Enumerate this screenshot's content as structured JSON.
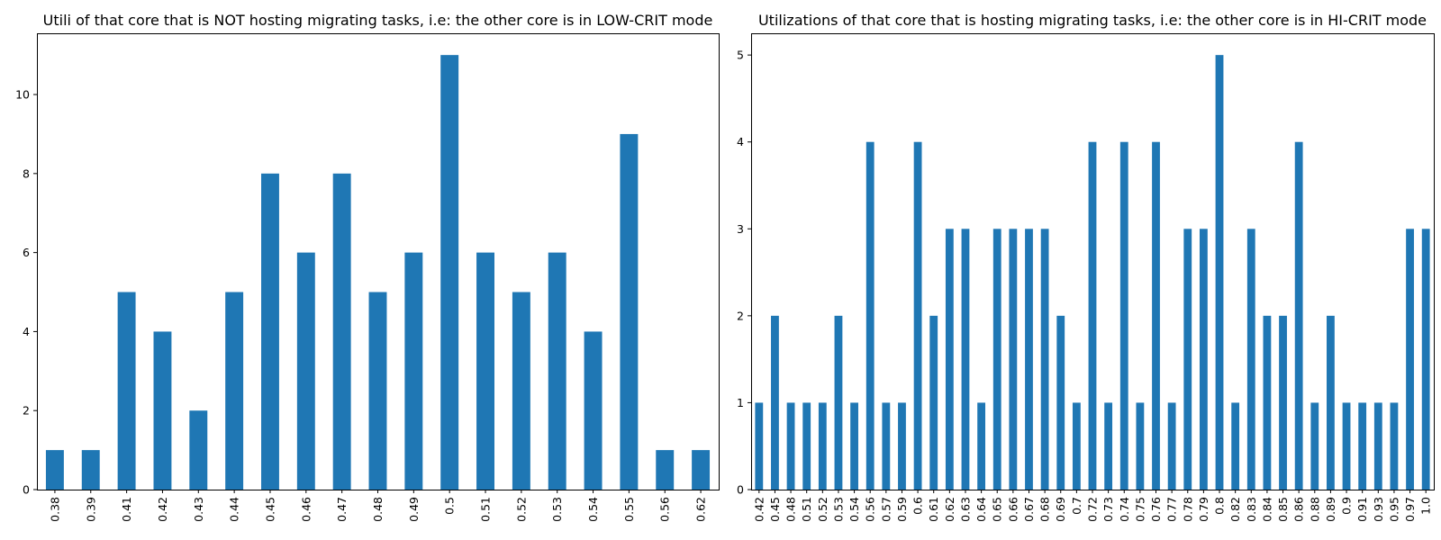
{
  "chart_data": [
    {
      "type": "bar",
      "title": "Utili of that core that is NOT hosting migrating tasks, i.e: the other core is in LOW-CRIT mode",
      "xlabel": "",
      "ylabel": "",
      "categories": [
        "0.38",
        "0.39",
        "0.41",
        "0.42",
        "0.43",
        "0.44",
        "0.45",
        "0.46",
        "0.47",
        "0.48",
        "0.49",
        "0.5",
        "0.51",
        "0.52",
        "0.53",
        "0.54",
        "0.55",
        "0.56",
        "0.62"
      ],
      "values": [
        1,
        1,
        5,
        4,
        2,
        5,
        8,
        6,
        8,
        5,
        6,
        11,
        6,
        5,
        6,
        4,
        9,
        1,
        1
      ],
      "ylim": [
        0,
        11.55
      ],
      "yticks": [
        0,
        2,
        4,
        6,
        8,
        10
      ],
      "bar_color": "#1f77b4",
      "grid": false,
      "legend": false
    },
    {
      "type": "bar",
      "title": "Utilizations of that core that is hosting migrating tasks, i.e: the other core is in HI-CRIT mode",
      "xlabel": "",
      "ylabel": "",
      "categories": [
        "0.42",
        "0.45",
        "0.48",
        "0.51",
        "0.52",
        "0.53",
        "0.54",
        "0.56",
        "0.57",
        "0.59",
        "0.6",
        "0.61",
        "0.62",
        "0.63",
        "0.64",
        "0.65",
        "0.66",
        "0.67",
        "0.68",
        "0.69",
        "0.7",
        "0.72",
        "0.73",
        "0.74",
        "0.75",
        "0.76",
        "0.77",
        "0.78",
        "0.79",
        "0.8",
        "0.82",
        "0.83",
        "0.84",
        "0.85",
        "0.86",
        "0.88",
        "0.89",
        "0.9",
        "0.91",
        "0.93",
        "0.95",
        "0.97",
        "1.0"
      ],
      "values": [
        1,
        2,
        1,
        1,
        1,
        2,
        1,
        4,
        1,
        1,
        4,
        2,
        3,
        3,
        1,
        3,
        3,
        3,
        3,
        2,
        1,
        4,
        1,
        4,
        1,
        4,
        1,
        3,
        3,
        5,
        1,
        3,
        2,
        2,
        4,
        1,
        2,
        1,
        1,
        1,
        1,
        3,
        3
      ],
      "ylim": [
        0,
        5.25
      ],
      "yticks": [
        0,
        1,
        2,
        3,
        4,
        5
      ],
      "bar_color": "#1f77b4",
      "grid": false,
      "legend": false
    }
  ]
}
